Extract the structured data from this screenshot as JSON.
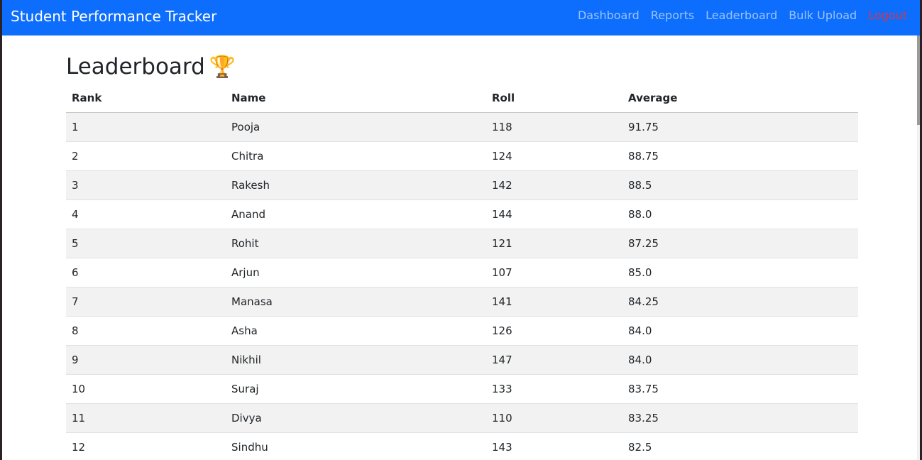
{
  "navbar": {
    "brand": "Student Performance Tracker",
    "links": [
      "Dashboard",
      "Reports",
      "Leaderboard",
      "Bulk Upload"
    ],
    "logout": "Logout"
  },
  "page": {
    "title": "Leaderboard",
    "title_icon": "trophy-icon"
  },
  "table": {
    "headers": [
      "Rank",
      "Name",
      "Roll",
      "Average"
    ],
    "rows": [
      [
        "1",
        "Pooja",
        "118",
        "91.75"
      ],
      [
        "2",
        "Chitra",
        "124",
        "88.75"
      ],
      [
        "3",
        "Rakesh",
        "142",
        "88.5"
      ],
      [
        "4",
        "Anand",
        "144",
        "88.0"
      ],
      [
        "5",
        "Rohit",
        "121",
        "87.25"
      ],
      [
        "6",
        "Arjun",
        "107",
        "85.0"
      ],
      [
        "7",
        "Manasa",
        "141",
        "84.25"
      ],
      [
        "8",
        "Asha",
        "126",
        "84.0"
      ],
      [
        "9",
        "Nikhil",
        "147",
        "84.0"
      ],
      [
        "10",
        "Suraj",
        "133",
        "83.75"
      ],
      [
        "11",
        "Divya",
        "110",
        "83.25"
      ],
      [
        "12",
        "Sindhu",
        "143",
        "82.5"
      ]
    ]
  },
  "colors": {
    "navbar": "#0d6efd",
    "logout": "#dc3545",
    "stripe": "#f2f2f2"
  }
}
